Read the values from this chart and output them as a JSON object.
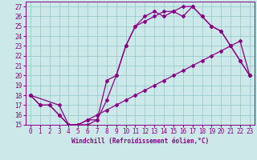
{
  "xlabel": "Windchill (Refroidissement éolien,°C)",
  "background_color": "#cce8e8",
  "grid_color": "#99cccc",
  "line_color": "#880088",
  "xlim": [
    -0.5,
    23.5
  ],
  "ylim": [
    15,
    27.5
  ],
  "xticks": [
    0,
    1,
    2,
    3,
    4,
    5,
    6,
    7,
    8,
    9,
    10,
    11,
    12,
    13,
    14,
    15,
    16,
    17,
    18,
    19,
    20,
    21,
    22,
    23
  ],
  "yticks": [
    15,
    16,
    17,
    18,
    19,
    20,
    21,
    22,
    23,
    24,
    25,
    26,
    27
  ],
  "line1_x": [
    0,
    1,
    2,
    3,
    4,
    5,
    6,
    7,
    8,
    9,
    10,
    11,
    12,
    13,
    14,
    15,
    16,
    17,
    18,
    19,
    20,
    21,
    22,
    23
  ],
  "line1_y": [
    18,
    17,
    17,
    16,
    15,
    15,
    15.5,
    15.5,
    17.5,
    20,
    23,
    25,
    25.5,
    26,
    26.5,
    26.5,
    27,
    27,
    26,
    25,
    24.5,
    23,
    21.5,
    20
  ],
  "line2_x": [
    0,
    1,
    2,
    3,
    4,
    5,
    6,
    7,
    8,
    9,
    10,
    11,
    12,
    13,
    14,
    15,
    16,
    17,
    18,
    19,
    20,
    21,
    22,
    23
  ],
  "line2_y": [
    18,
    17,
    17,
    16,
    15,
    15,
    15.5,
    16,
    16.5,
    17,
    17.5,
    18,
    18.5,
    19,
    19.5,
    20,
    20.5,
    21,
    21.5,
    22,
    22.5,
    23,
    23.5,
    20
  ],
  "line3_x": [
    0,
    3,
    4,
    5,
    6,
    7,
    8,
    9,
    10,
    11,
    12,
    13,
    14,
    15,
    16,
    17,
    18,
    19,
    20,
    21,
    22,
    23
  ],
  "line3_y": [
    18,
    17,
    15,
    15,
    15,
    15.5,
    19.5,
    20,
    23,
    25,
    26,
    26.5,
    26,
    26.5,
    26,
    27,
    26,
    25,
    24.5,
    23,
    21.5,
    20
  ],
  "tick_fontsize": 5.5,
  "xlabel_fontsize": 5.5
}
